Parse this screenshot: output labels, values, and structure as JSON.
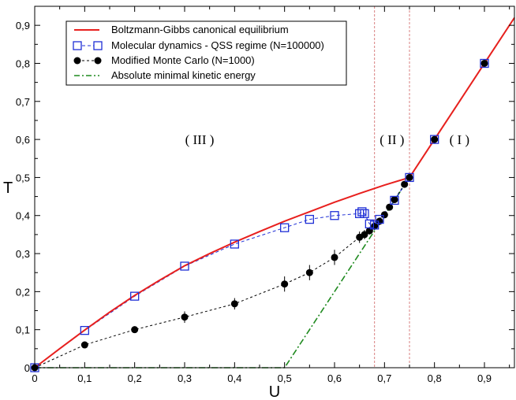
{
  "chart_data": {
    "type": "line",
    "xlabel": "U",
    "ylabel": "T",
    "xlim": [
      0,
      0.96
    ],
    "ylim": [
      0,
      0.95
    ],
    "x_ticks": [
      "0",
      "0,1",
      "0,2",
      "0,3",
      "0,4",
      "0,5",
      "0,6",
      "0,7",
      "0,8",
      "0,9"
    ],
    "y_ticks": [
      "0",
      "0,1",
      "0,2",
      "0,3",
      "0,4",
      "0,5",
      "0,6",
      "0,7",
      "0,8",
      "0,9"
    ],
    "grid": false,
    "legend_position": "top-left",
    "regions": [
      {
        "label": "( III )",
        "x": 0.33,
        "y": 0.6
      },
      {
        "label": "( II )",
        "x": 0.715,
        "y": 0.6
      },
      {
        "label": "( I )",
        "x": 0.85,
        "y": 0.6
      }
    ],
    "vlines": [
      0.68,
      0.75
    ],
    "series": [
      {
        "name": "Boltzmann-Gibbs canonical equilibrium",
        "style": "line",
        "color": "#e8201e",
        "x": [
          0,
          0.05,
          0.1,
          0.15,
          0.2,
          0.25,
          0.3,
          0.35,
          0.4,
          0.45,
          0.5,
          0.55,
          0.6,
          0.65,
          0.7,
          0.75,
          0.8,
          0.85,
          0.9,
          0.96
        ],
        "y": [
          0,
          0.05,
          0.099,
          0.146,
          0.19,
          0.23,
          0.268,
          0.3,
          0.33,
          0.358,
          0.385,
          0.41,
          0.435,
          0.458,
          0.48,
          0.5,
          0.6,
          0.7,
          0.8,
          0.92
        ]
      },
      {
        "name": "Molecular dynamics  - QSS regime (N=100000)",
        "style": "dashed-square",
        "color": "#1f2fd6",
        "x": [
          0,
          0.1,
          0.2,
          0.3,
          0.4,
          0.5,
          0.55,
          0.6,
          0.65,
          0.655,
          0.66,
          0.67,
          0.68,
          0.69,
          0.72,
          0.75,
          0.8,
          0.9
        ],
        "y": [
          0,
          0.098,
          0.188,
          0.267,
          0.325,
          0.368,
          0.39,
          0.4,
          0.405,
          0.41,
          0.405,
          0.378,
          0.375,
          0.39,
          0.44,
          0.5,
          0.6,
          0.8
        ]
      },
      {
        "name": "Modified Monte Carlo  (N=1000)",
        "style": "dashed-circle",
        "color": "#000000",
        "x": [
          0,
          0.1,
          0.2,
          0.3,
          0.4,
          0.5,
          0.55,
          0.6,
          0.65,
          0.66,
          0.67,
          0.68,
          0.69,
          0.7,
          0.71,
          0.72,
          0.74,
          0.75,
          0.8,
          0.9
        ],
        "y": [
          0,
          0.06,
          0.1,
          0.133,
          0.168,
          0.22,
          0.25,
          0.29,
          0.343,
          0.35,
          0.36,
          0.372,
          0.385,
          0.402,
          0.422,
          0.442,
          0.482,
          0.5,
          0.6,
          0.8
        ],
        "errors": [
          0,
          0.008,
          0.008,
          0.015,
          0.015,
          0.02,
          0.02,
          0.02,
          0.015,
          0.012,
          0.01,
          0.01,
          0.01,
          0.008,
          0.008,
          0.008,
          0.008,
          0.008,
          0.008,
          0.008
        ]
      },
      {
        "name": "Absolute minimal kinetic energy",
        "style": "dashdot",
        "color": "#1f8a1f",
        "x": [
          0,
          0.5,
          0.96
        ],
        "y": [
          0,
          0,
          0.92
        ]
      }
    ]
  }
}
